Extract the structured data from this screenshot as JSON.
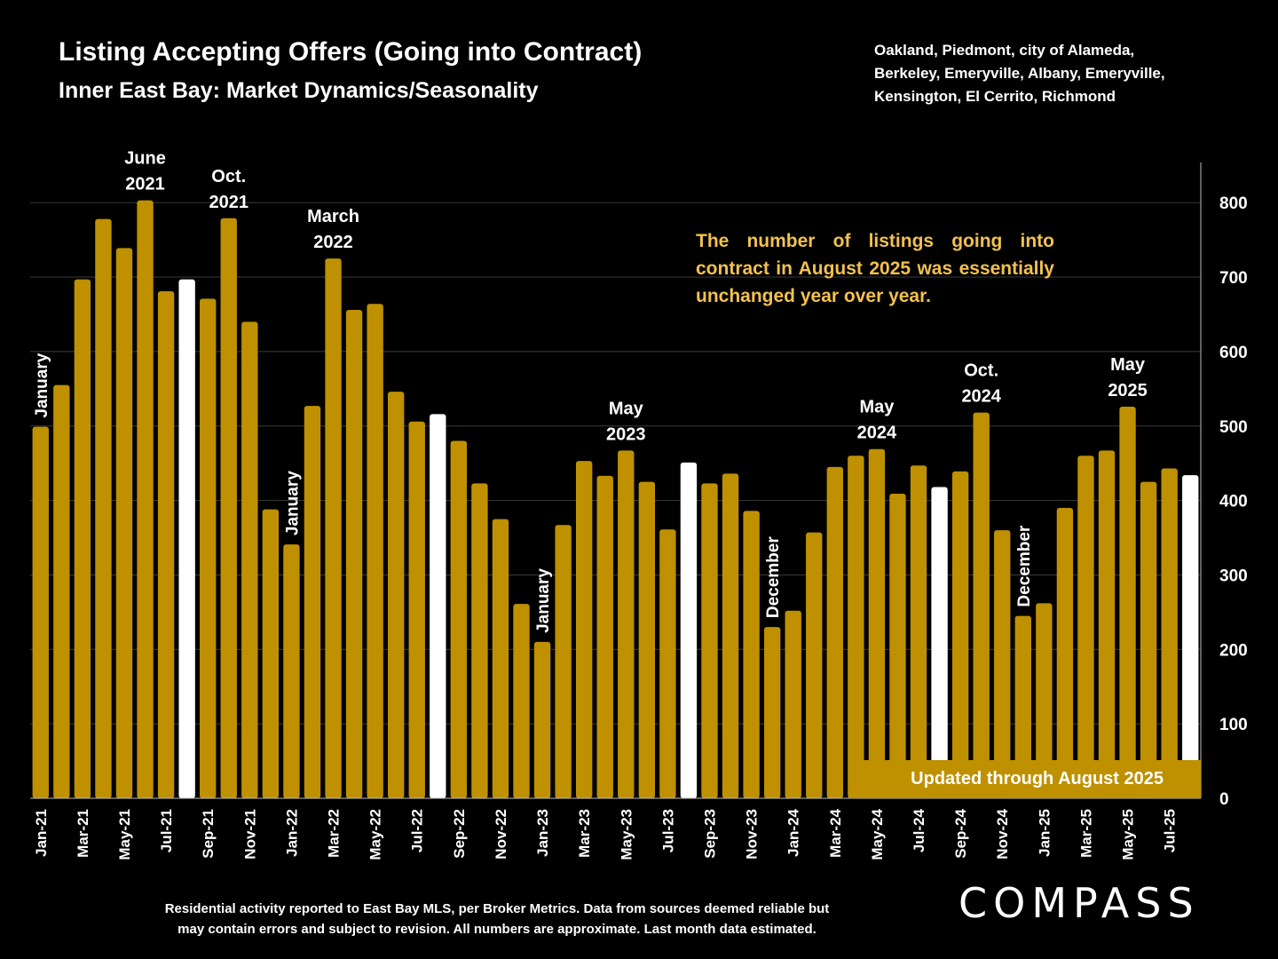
{
  "chart_data": {
    "type": "bar",
    "title": "Listing Accepting Offers (Going into Contract)",
    "subtitle": "Inner East Bay: Market Dynamics/Seasonality",
    "region_lines": [
      "Oakland, Piedmont, city of Alameda,",
      "Berkeley, Emeryville, Albany, Emeryville,",
      "Kensington, El Cerrito, Richmond"
    ],
    "callout": "The number of listings going into contract in August 2025 was essentially unchanged year over year.",
    "updated_label": "Updated through August 2025",
    "categories": [
      "Jan-21",
      "Feb-21",
      "Mar-21",
      "Apr-21",
      "May-21",
      "Jun-21",
      "Jul-21",
      "Aug-21",
      "Sep-21",
      "Oct-21",
      "Nov-21",
      "Dec-21",
      "Jan-22",
      "Feb-22",
      "Mar-22",
      "Apr-22",
      "May-22",
      "Jun-22",
      "Jul-22",
      "Aug-22",
      "Sep-22",
      "Oct-22",
      "Nov-22",
      "Dec-22",
      "Jan-23",
      "Feb-23",
      "Mar-23",
      "Apr-23",
      "May-23",
      "Jun-23",
      "Jul-23",
      "Aug-23",
      "Sep-23",
      "Oct-23",
      "Nov-23",
      "Dec-23",
      "Jan-24",
      "Feb-24",
      "Mar-24",
      "Apr-24",
      "May-24",
      "Jun-24",
      "Jul-24",
      "Aug-24",
      "Sep-24",
      "Oct-24",
      "Nov-24",
      "Dec-24",
      "Jan-25",
      "Feb-25",
      "Mar-25",
      "Apr-25",
      "May-25",
      "Jun-25",
      "Jul-25",
      "Aug-25"
    ],
    "visible_tick_labels": [
      "Jan-21",
      "Mar-21",
      "May-21",
      "Jul-21",
      "Sep-21",
      "Nov-21",
      "Jan-22",
      "Mar-22",
      "May-22",
      "Jul-22",
      "Sep-22",
      "Nov-22",
      "Jan-23",
      "Mar-23",
      "May-23",
      "Jul-23",
      "Sep-23",
      "Nov-23",
      "Jan-24",
      "Mar-24",
      "May-24",
      "Jul-24",
      "Sep-24",
      "Nov-24",
      "Jan-25",
      "Mar-25",
      "May-25",
      "Jul-25"
    ],
    "values": [
      499,
      555,
      697,
      778,
      739,
      803,
      681,
      697,
      671,
      779,
      640,
      388,
      341,
      527,
      725,
      656,
      664,
      546,
      506,
      516,
      480,
      423,
      375,
      261,
      210,
      367,
      453,
      433,
      467,
      425,
      361,
      451,
      423,
      436,
      386,
      230,
      252,
      357,
      445,
      460,
      469,
      409,
      447,
      418,
      439,
      518,
      360,
      245,
      262,
      390,
      460,
      467,
      526,
      425,
      443,
      434
    ],
    "highlight_indices": [
      7,
      19,
      31,
      43,
      55
    ],
    "bar_color": "#bf9000",
    "highlight_color": "#ffffff",
    "ylim": [
      0,
      850
    ],
    "yticks": [
      0,
      100,
      200,
      300,
      400,
      500,
      600,
      700,
      800
    ],
    "y_axis_position": "right",
    "grid": true,
    "annotations": [
      {
        "index": 0,
        "lines": [
          "January"
        ],
        "vertical": true
      },
      {
        "index": 5,
        "lines": [
          "June",
          "2021"
        ],
        "vertical": false
      },
      {
        "index": 9,
        "lines": [
          "Oct.",
          "2021"
        ],
        "vertical": false
      },
      {
        "index": 12,
        "lines": [
          "January"
        ],
        "vertical": true
      },
      {
        "index": 14,
        "lines": [
          "March",
          "2022"
        ],
        "vertical": false
      },
      {
        "index": 24,
        "lines": [
          "January"
        ],
        "vertical": true
      },
      {
        "index": 28,
        "lines": [
          "May",
          "2023"
        ],
        "vertical": false
      },
      {
        "index": 35,
        "lines": [
          "December"
        ],
        "vertical": true
      },
      {
        "index": 40,
        "lines": [
          "May",
          "2024"
        ],
        "vertical": false
      },
      {
        "index": 45,
        "lines": [
          "Oct.",
          "2024"
        ],
        "vertical": false
      },
      {
        "index": 47,
        "lines": [
          "December"
        ],
        "vertical": true
      },
      {
        "index": 52,
        "lines": [
          "May",
          "2025"
        ],
        "vertical": false
      }
    ]
  },
  "footer": {
    "line1": "Residential activity reported to East Bay MLS, per Broker Metrics. Data from sources deemed reliable but",
    "line2": "may contain errors and subject to revision. All numbers are approximate. Last month data estimated."
  },
  "brand": {
    "logo_text": "COMPASS"
  }
}
